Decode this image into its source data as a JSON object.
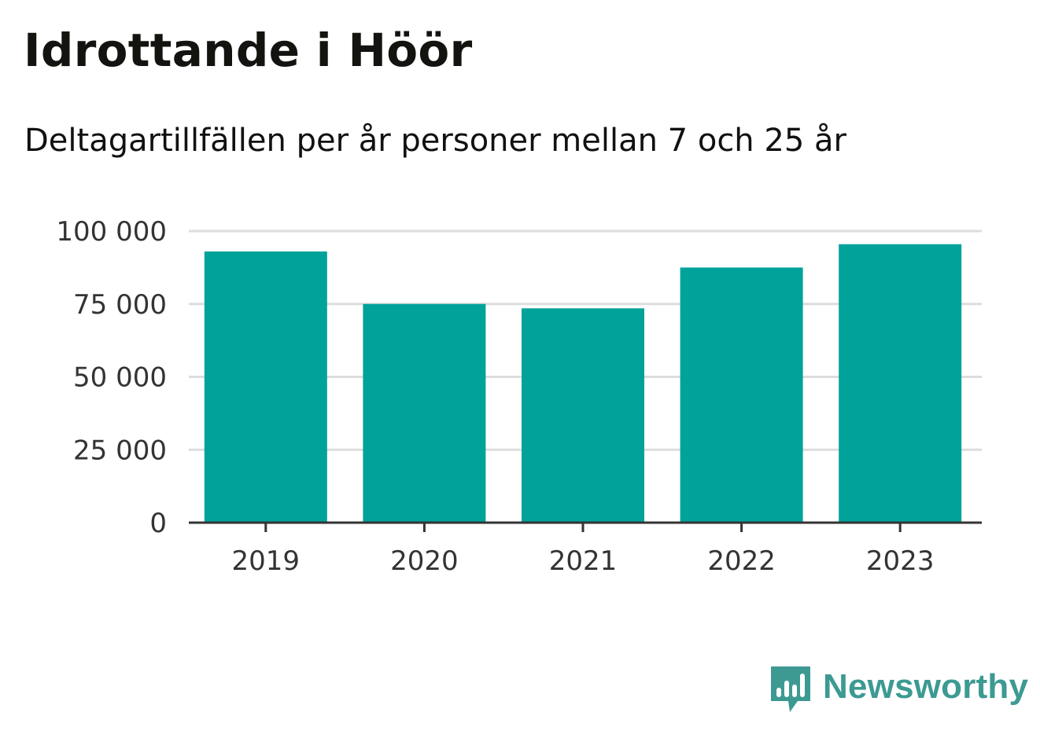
{
  "chart_data": {
    "type": "bar",
    "title": "Idrottande i Höör",
    "subtitle": "Deltagartillfällen per år personer mellan 7 och 25 år",
    "categories": [
      "2019",
      "2020",
      "2021",
      "2022",
      "2023"
    ],
    "values": [
      93000,
      75000,
      73500,
      87500,
      95500
    ],
    "ylim": [
      0,
      100000
    ],
    "yticks": [
      0,
      25000,
      50000,
      75000,
      100000
    ],
    "ytick_labels": [
      "0",
      "25 000",
      "50 000",
      "75 000",
      "100 000"
    ],
    "grid": true,
    "bar_color": "#00a29a",
    "grid_color": "#dddddd",
    "axis_color": "#333333"
  },
  "brand": {
    "name": "Newsworthy",
    "icon": "newsworthy-logo-icon",
    "color": "#3d9a93"
  }
}
